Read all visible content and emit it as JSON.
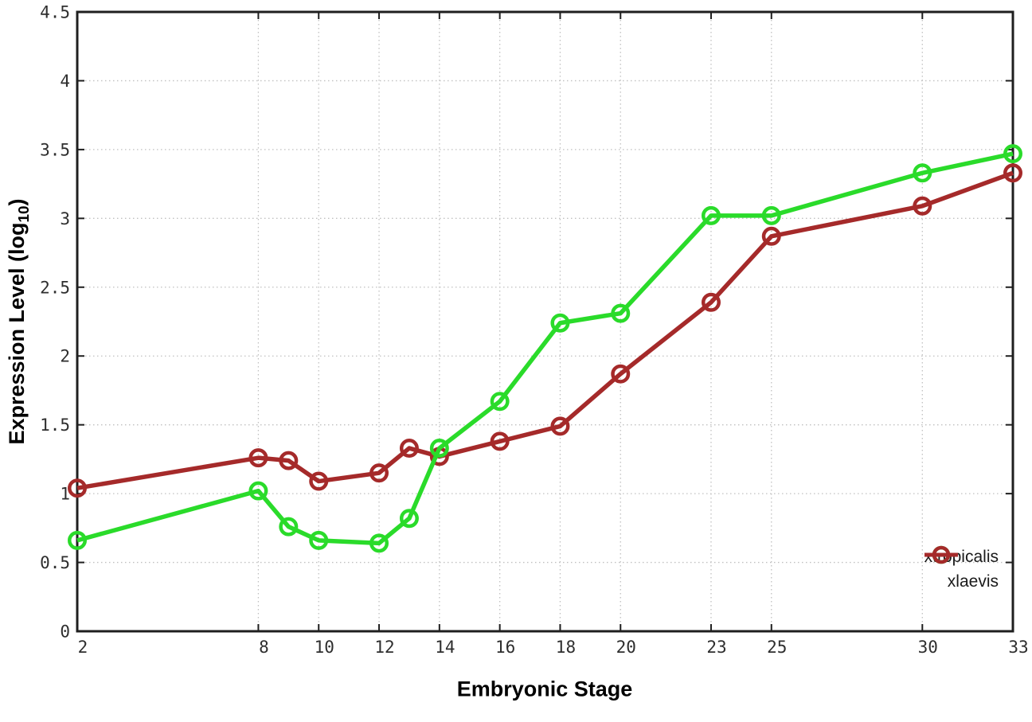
{
  "chart_data": {
    "type": "line",
    "x": [
      2,
      8,
      9,
      10,
      12,
      13,
      14,
      16,
      18,
      20,
      23,
      25,
      30,
      33
    ],
    "series": [
      {
        "name": "xtropicalis",
        "color": "#2adb2a",
        "values": [
          0.66,
          1.02,
          0.76,
          0.66,
          0.64,
          0.82,
          1.33,
          1.67,
          2.24,
          2.31,
          3.02,
          3.02,
          3.33,
          3.47
        ]
      },
      {
        "name": "xlaevis",
        "color": "#a52a2a",
        "values": [
          1.04,
          1.26,
          1.24,
          1.09,
          1.15,
          1.33,
          1.27,
          1.38,
          1.49,
          1.87,
          2.39,
          2.87,
          3.09,
          3.33
        ]
      }
    ],
    "xlabel": "Embryonic Stage",
    "ylabel": "Expression Level (log10)",
    "ylabel_parts": {
      "main": "Expression Level (log",
      "sub": "10",
      "close": ")"
    },
    "xlim": [
      2,
      33
    ],
    "ylim": [
      0,
      4.5
    ],
    "xticks": {
      "values": [
        2,
        8,
        10,
        12,
        14,
        16,
        18,
        20,
        23,
        25,
        30,
        33
      ],
      "labels": [
        "2",
        "8",
        "10",
        "12",
        "14",
        "16",
        "18",
        "20",
        "23",
        "25",
        "30",
        "33"
      ]
    },
    "yticks": {
      "values": [
        0,
        0.5,
        1,
        1.5,
        2,
        2.5,
        3,
        3.5,
        4,
        4.5
      ],
      "labels": [
        "0",
        "0.5",
        "1",
        "1.5",
        "2",
        "2.5",
        "3",
        "3.5",
        "4",
        "4.5"
      ]
    },
    "grid": true,
    "legend_position": "bottom-right",
    "legend": [
      "xtropicalis",
      "xlaevis"
    ],
    "marker": "open-circle"
  },
  "colors": {
    "grid": "#c0c0c0",
    "axis": "#1f1f1f",
    "tick_label": "#2e2e2e",
    "background": "#ffffff"
  }
}
